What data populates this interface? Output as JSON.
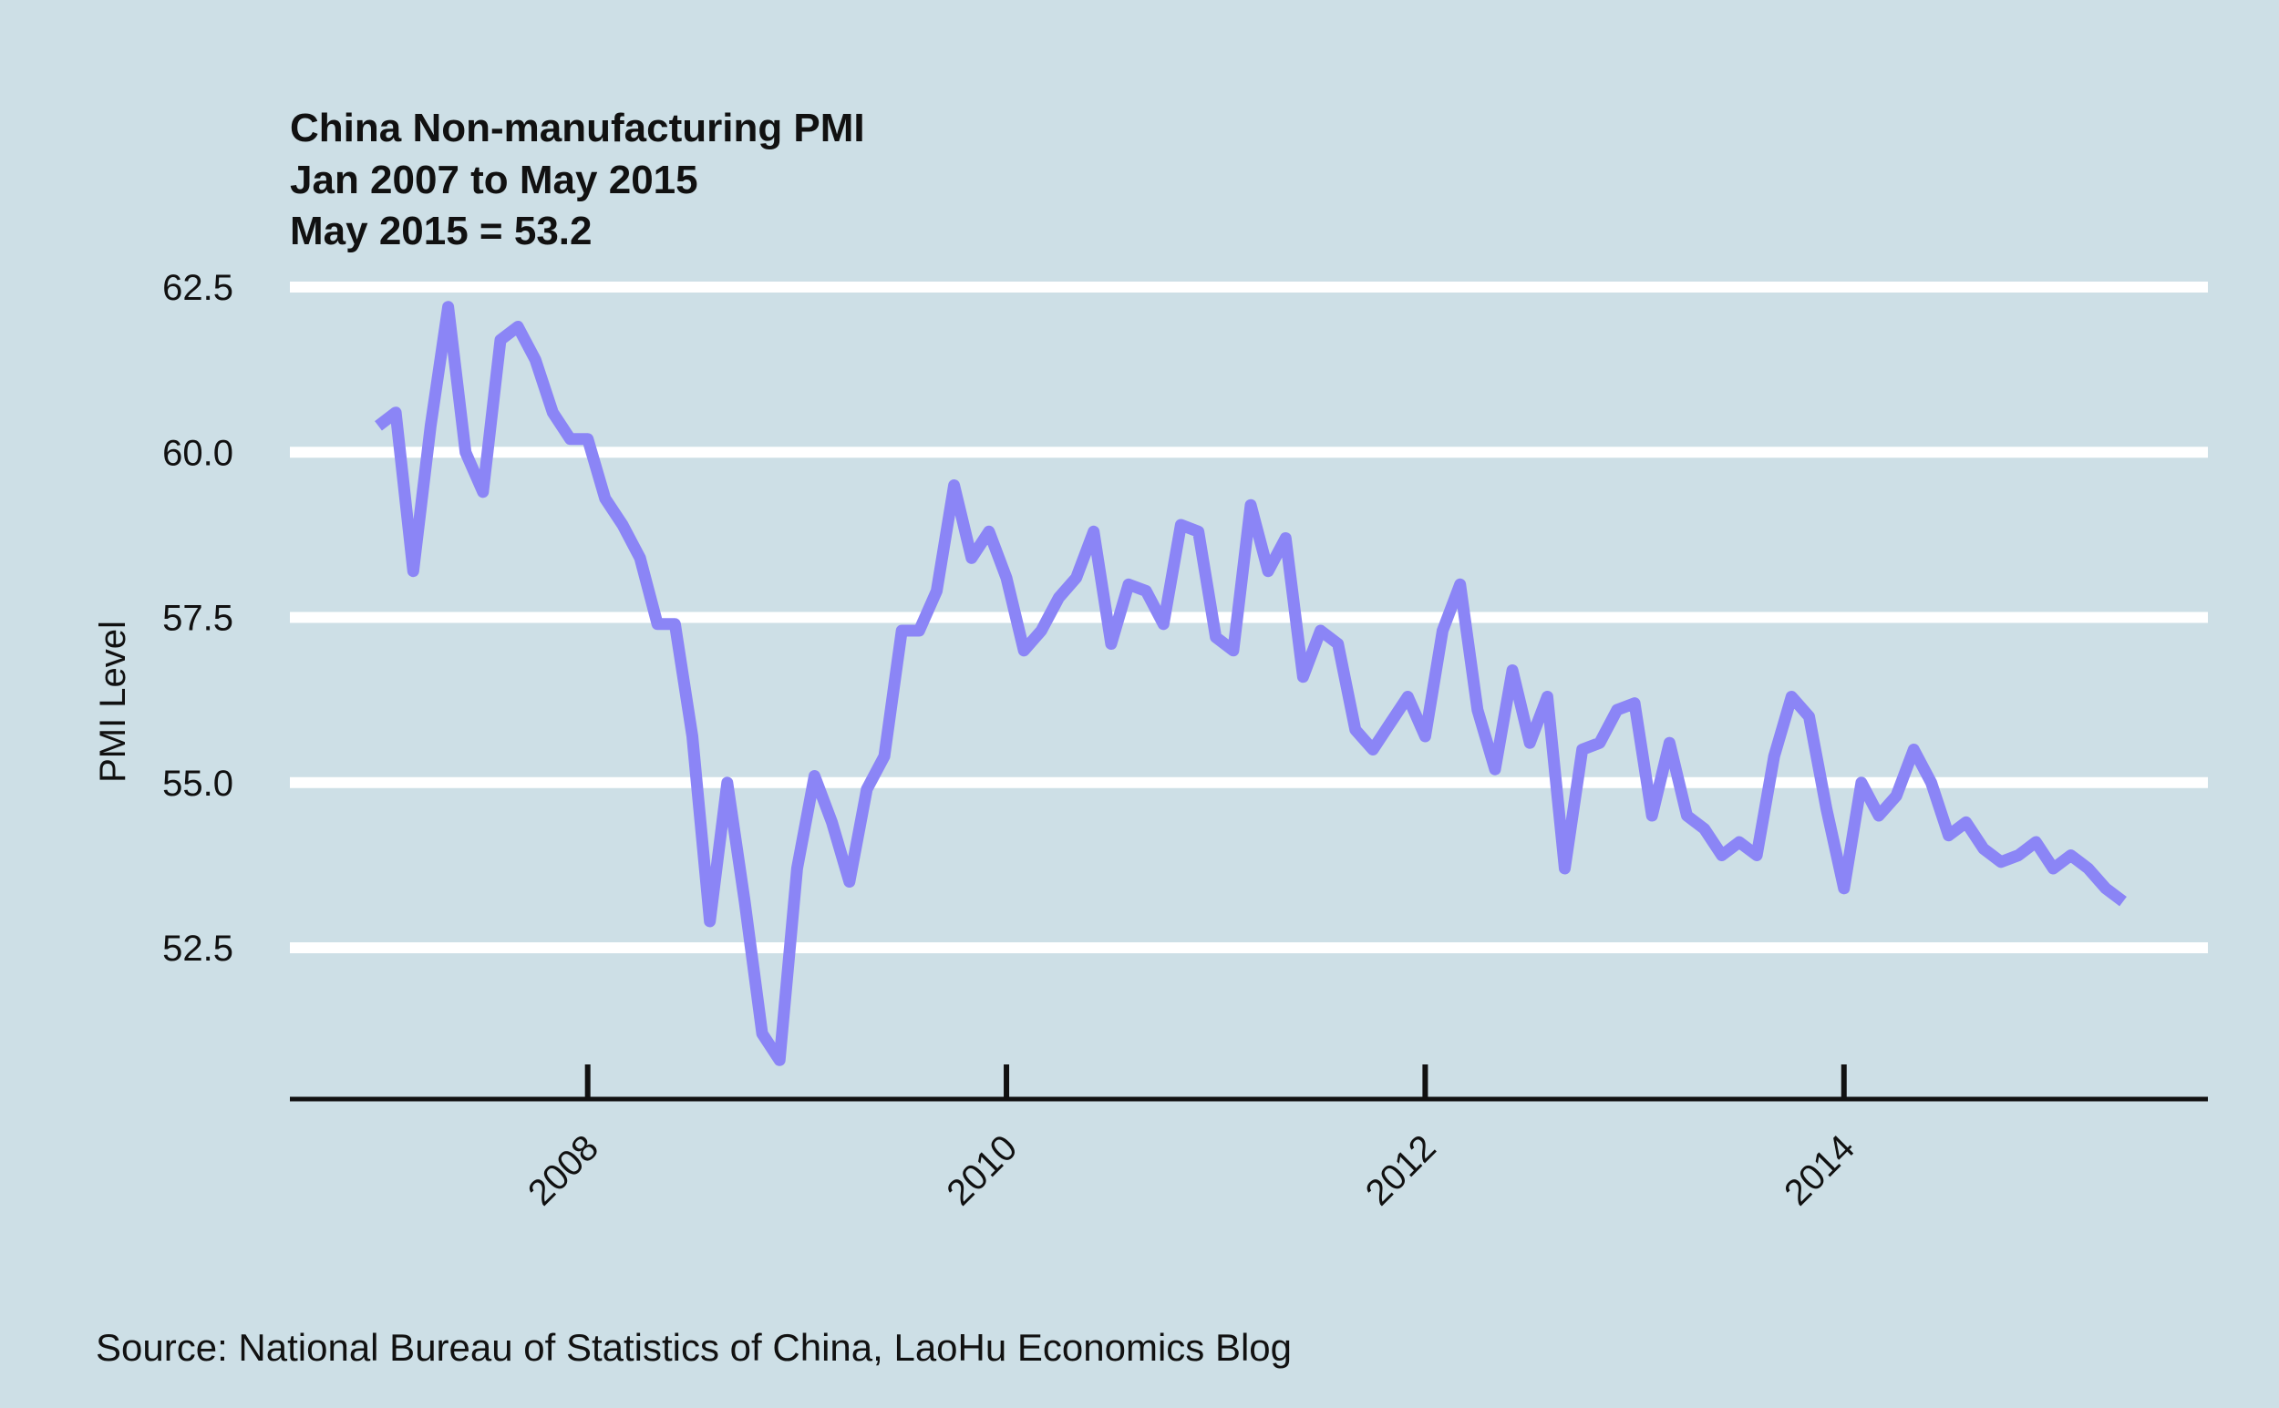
{
  "chart_data": {
    "type": "line",
    "title_lines": [
      "China Non-manufacturing PMI",
      "Jan 2007 to May 2015",
      "May 2015 = 53.2"
    ],
    "xlabel": "",
    "ylabel": "PMI Level",
    "source": "Source: National Bureau of Statistics of China, LaoHu Economics Blog",
    "x_ticks": [
      "2008",
      "2010",
      "2012",
      "2014"
    ],
    "y_ticks": [
      "52.5",
      "55.0",
      "57.5",
      "60.0",
      "62.5"
    ],
    "xlim": [
      "2007-01",
      "2015-05"
    ],
    "ylim": [
      50.8,
      62.5
    ],
    "grid": "horizontal",
    "colors": {
      "background": "#cddfe6",
      "line": "#8b85f6",
      "grid": "#ffffff",
      "axis": "#111111"
    },
    "series": [
      {
        "x": [
          "2007-01",
          "2007-02",
          "2007-03",
          "2007-04",
          "2007-05",
          "2007-06",
          "2007-07",
          "2007-08",
          "2007-09",
          "2007-10",
          "2007-11",
          "2007-12",
          "2008-01",
          "2008-02",
          "2008-03",
          "2008-04",
          "2008-05",
          "2008-06",
          "2008-07",
          "2008-08",
          "2008-09",
          "2008-10",
          "2008-11",
          "2008-12",
          "2009-01",
          "2009-02",
          "2009-03",
          "2009-04",
          "2009-05",
          "2009-06",
          "2009-07",
          "2009-08",
          "2009-09",
          "2009-10",
          "2009-11",
          "2009-12",
          "2010-01",
          "2010-02",
          "2010-03",
          "2010-04",
          "2010-05",
          "2010-06",
          "2010-07",
          "2010-08",
          "2010-09",
          "2010-10",
          "2010-11",
          "2010-12",
          "2011-01",
          "2011-02",
          "2011-03",
          "2011-04",
          "2011-05",
          "2011-06",
          "2011-07",
          "2011-08",
          "2011-09",
          "2011-10",
          "2011-11",
          "2011-12",
          "2012-01",
          "2012-02",
          "2012-03",
          "2012-04",
          "2012-05",
          "2012-06",
          "2012-07",
          "2012-08",
          "2012-09",
          "2012-10",
          "2012-11",
          "2012-12",
          "2013-01",
          "2013-02",
          "2013-03",
          "2013-04",
          "2013-05",
          "2013-06",
          "2013-07",
          "2013-08",
          "2013-09",
          "2013-10",
          "2013-11",
          "2013-12",
          "2014-01",
          "2014-02",
          "2014-03",
          "2014-04",
          "2014-05",
          "2014-06",
          "2014-07",
          "2014-08",
          "2014-09",
          "2014-10",
          "2014-11",
          "2014-12",
          "2015-01",
          "2015-02",
          "2015-03",
          "2015-04",
          "2015-05"
        ],
        "values": [
          60.4,
          60.6,
          58.2,
          60.4,
          62.2,
          60.0,
          59.4,
          61.7,
          61.9,
          61.4,
          60.6,
          60.2,
          60.2,
          59.3,
          58.9,
          58.4,
          57.4,
          57.4,
          55.7,
          52.9,
          55.0,
          53.2,
          51.2,
          50.8,
          53.7,
          55.1,
          54.4,
          53.5,
          54.9,
          55.4,
          57.3,
          57.3,
          57.9,
          59.5,
          58.4,
          58.8,
          58.1,
          57.0,
          57.3,
          57.8,
          58.1,
          58.8,
          57.1,
          58.0,
          57.9,
          57.4,
          58.9,
          58.8,
          57.2,
          57.0,
          59.2,
          58.2,
          58.7,
          56.6,
          57.3,
          57.1,
          55.8,
          55.5,
          55.9,
          56.3,
          55.7,
          57.3,
          58.0,
          56.1,
          55.2,
          56.7,
          55.6,
          56.3,
          53.7,
          55.5,
          55.6,
          56.1,
          56.2,
          54.5,
          55.6,
          54.5,
          54.3,
          53.9,
          54.1,
          53.9,
          55.4,
          56.3,
          56.0,
          54.6,
          53.4,
          55.0,
          54.5,
          54.8,
          55.5,
          55.0,
          54.2,
          54.4,
          54.0,
          53.8,
          53.9,
          54.1,
          53.7,
          53.9,
          53.7,
          53.4,
          53.2
        ]
      }
    ]
  }
}
